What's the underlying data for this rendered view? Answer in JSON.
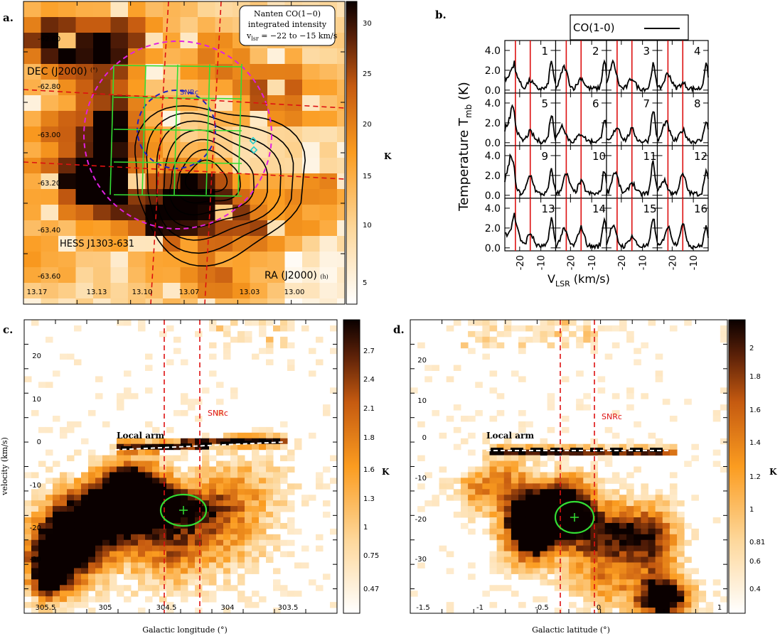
{
  "panel_a": {
    "letter": "a.",
    "annotation_lines": [
      "Nanten CO(1−0)",
      "integrated intensity",
      "v",
      "lsr",
      " = −22 to −15 km/s"
    ],
    "dec_label": "DEC (J2000)",
    "dec_unit": "(°)",
    "ra_label": "RA (J2000)",
    "ra_unit": "(h)",
    "source_label": "HESS J1303-631",
    "snr_label": "SNRc",
    "colorbar_unit": "K",
    "colorbar_ticks": [
      "5",
      "10",
      "15",
      "20",
      "25",
      "30"
    ],
    "dec_ticks": [
      "-62.60",
      "-62.80",
      "-63.00",
      "-63.20",
      "-63.40",
      "-63.60"
    ],
    "ra_ticks": [
      "13.17",
      "13.13",
      "13.10",
      "13.07",
      "13.03",
      "13.00"
    ]
  },
  "panel_b": {
    "letter": "b.",
    "ylabel": "Temperature T",
    "ylabel_sub": "mb",
    "ylabel_unit": " (K)",
    "xlabel": "V",
    "xlabel_sub": "LSR",
    "xlabel_unit": " (km/s)",
    "legend": "CO(1-0)",
    "y_ticks": [
      "4.0",
      "2.0",
      "0.0"
    ],
    "x_ticks": [
      "-20",
      "-10"
    ],
    "cell_numbers": [
      "1",
      "2",
      "3",
      "4",
      "5",
      "6",
      "7",
      "8",
      "9",
      "10",
      "11",
      "12",
      "13",
      "14",
      "15",
      "16"
    ]
  },
  "panel_c": {
    "letter": "c.",
    "ylabel": "velocity (km/s)",
    "xlabel": "Galactic longitude (°)",
    "x_ticks": [
      "305.5",
      "305",
      "304.5",
      "304",
      "303.5"
    ],
    "y_ticks": [
      "20",
      "10",
      "0",
      "-10",
      "-20",
      "-30"
    ],
    "arm_label": "Local arm",
    "snr_label": "SNRc",
    "colorbar_unit": "K",
    "colorbar_ticks": [
      "2.7",
      "2.4",
      "2.1",
      "1.8",
      "1.6",
      "1.3",
      "1",
      "0.75",
      "0.47"
    ]
  },
  "panel_d": {
    "letter": "d.",
    "xlabel": "Galactic latitude (°)",
    "x_ticks": [
      "-1.5",
      "-1",
      "-0.5",
      "0",
      "1"
    ],
    "y_ticks": [
      "20",
      "10",
      "0",
      "-10",
      "-20",
      "-30"
    ],
    "arm_label": "Local arm",
    "snr_label": "SNRc",
    "colorbar_unit": "K",
    "colorbar_ticks": [
      "2",
      "1.8",
      "1.6",
      "1.4",
      "1.2",
      "1",
      "0.81",
      "0.6",
      "0.4"
    ]
  },
  "chart_data": [
    {
      "type": "heatmap",
      "panel": "a",
      "x_axis": "RA (J2000) (h)",
      "y_axis": "DEC (J2000) (°)",
      "xlim": [
        13.19,
        12.97
      ],
      "ylim": [
        -63.7,
        -62.52
      ],
      "colorbar_range": [
        2,
        32
      ],
      "snrc_center": {
        "ra": 13.085,
        "dec": -62.99
      },
      "hess_contour_center": {
        "ra": 13.06,
        "dec": -63.13
      },
      "grid_cells": 16,
      "colors": {
        "circle": "#e020e0",
        "snr": "#2020c0",
        "grid": "#33dd33",
        "cut": "#dd1111",
        "marker": "#22cccc"
      }
    },
    {
      "type": "line",
      "panel": "b",
      "series": [
        {
          "name": "CO(1-0)",
          "cells": 16
        }
      ],
      "velocity_window": [
        -22,
        -15
      ],
      "x_range": [
        -27,
        -3
      ],
      "y_range": [
        -0.3,
        5.0
      ]
    },
    {
      "type": "heatmap",
      "panel": "c",
      "xlim": [
        305.6,
        303.4
      ],
      "ylim": [
        -40,
        28
      ],
      "colorbar_range": [
        0.35,
        2.9
      ],
      "snrc_longitude_range": [
        304.35,
        304.6
      ],
      "cloud_center": {
        "longitude": 304.55,
        "velocity": -19
      },
      "local_arm_velocity": -3.5
    },
    {
      "type": "heatmap",
      "panel": "d",
      "xlim": [
        -1.55,
        1.05
      ],
      "ylim": [
        -40,
        28
      ],
      "colorbar_range": [
        0.3,
        2.2
      ],
      "snrc_latitude_range": [
        -0.3,
        -0.05
      ],
      "cloud_center": {
        "latitude": -0.17,
        "velocity": -20
      },
      "local_arm_velocity": -4
    }
  ]
}
